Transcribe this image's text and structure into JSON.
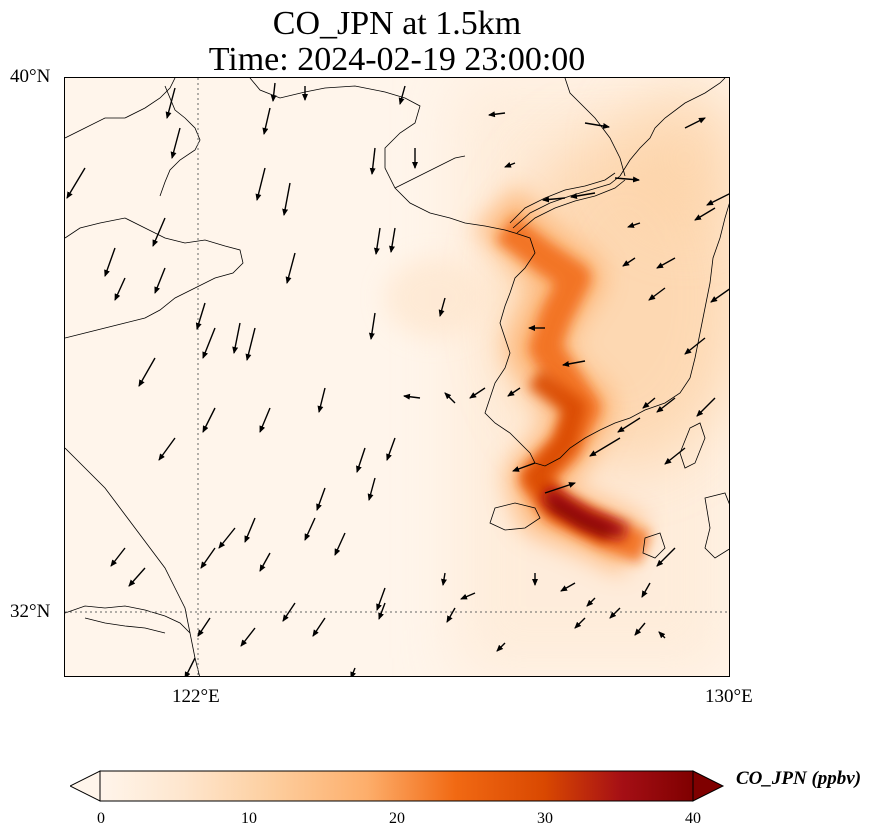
{
  "title": {
    "line1": "CO_JPN at 1.5km",
    "line2": "Time: 2024-02-19 23:00:00"
  },
  "map": {
    "extent": {
      "lon_min": 118,
      "lon_max": 130,
      "lat_min": 30.8,
      "lat_max": 40
    },
    "lat_ticks": [
      {
        "value": 40,
        "label": "40°N"
      },
      {
        "value": 32,
        "label": "32°N"
      }
    ],
    "lon_ticks": [
      {
        "value": 122,
        "label": "122°E"
      },
      {
        "value": 130,
        "label": "130°E"
      }
    ],
    "gridlines": "dotted",
    "features": [
      "coastlines",
      "country borders",
      "wind vectors",
      "concentration shading"
    ],
    "pollution_plume": [
      {
        "lon": 126.3,
        "lat": 37.6,
        "value": 22
      },
      {
        "lon": 127.1,
        "lat": 36.8,
        "value": 26
      },
      {
        "lon": 126.9,
        "lat": 35.6,
        "value": 32
      },
      {
        "lon": 127.7,
        "lat": 34.6,
        "value": 34
      },
      {
        "lon": 126.9,
        "lat": 33.6,
        "value": 36
      },
      {
        "lon": 127.6,
        "lat": 33.2,
        "value": 42
      },
      {
        "lon": 128.3,
        "lat": 32.8,
        "value": 30
      },
      {
        "lon": 129.0,
        "lat": 32.5,
        "value": 22
      }
    ]
  },
  "colorbar": {
    "label": "CO_JPN (ppbv)",
    "min": 0,
    "max": 40,
    "ticks": [
      "0",
      "10",
      "20",
      "30",
      "40"
    ],
    "extend": "both",
    "colormap": "OrRd",
    "colors": [
      "#fff5eb",
      "#fee6ce",
      "#fdd0a2",
      "#fdae6b",
      "#f16913",
      "#d94801",
      "#a50f15",
      "#7f0000"
    ]
  }
}
